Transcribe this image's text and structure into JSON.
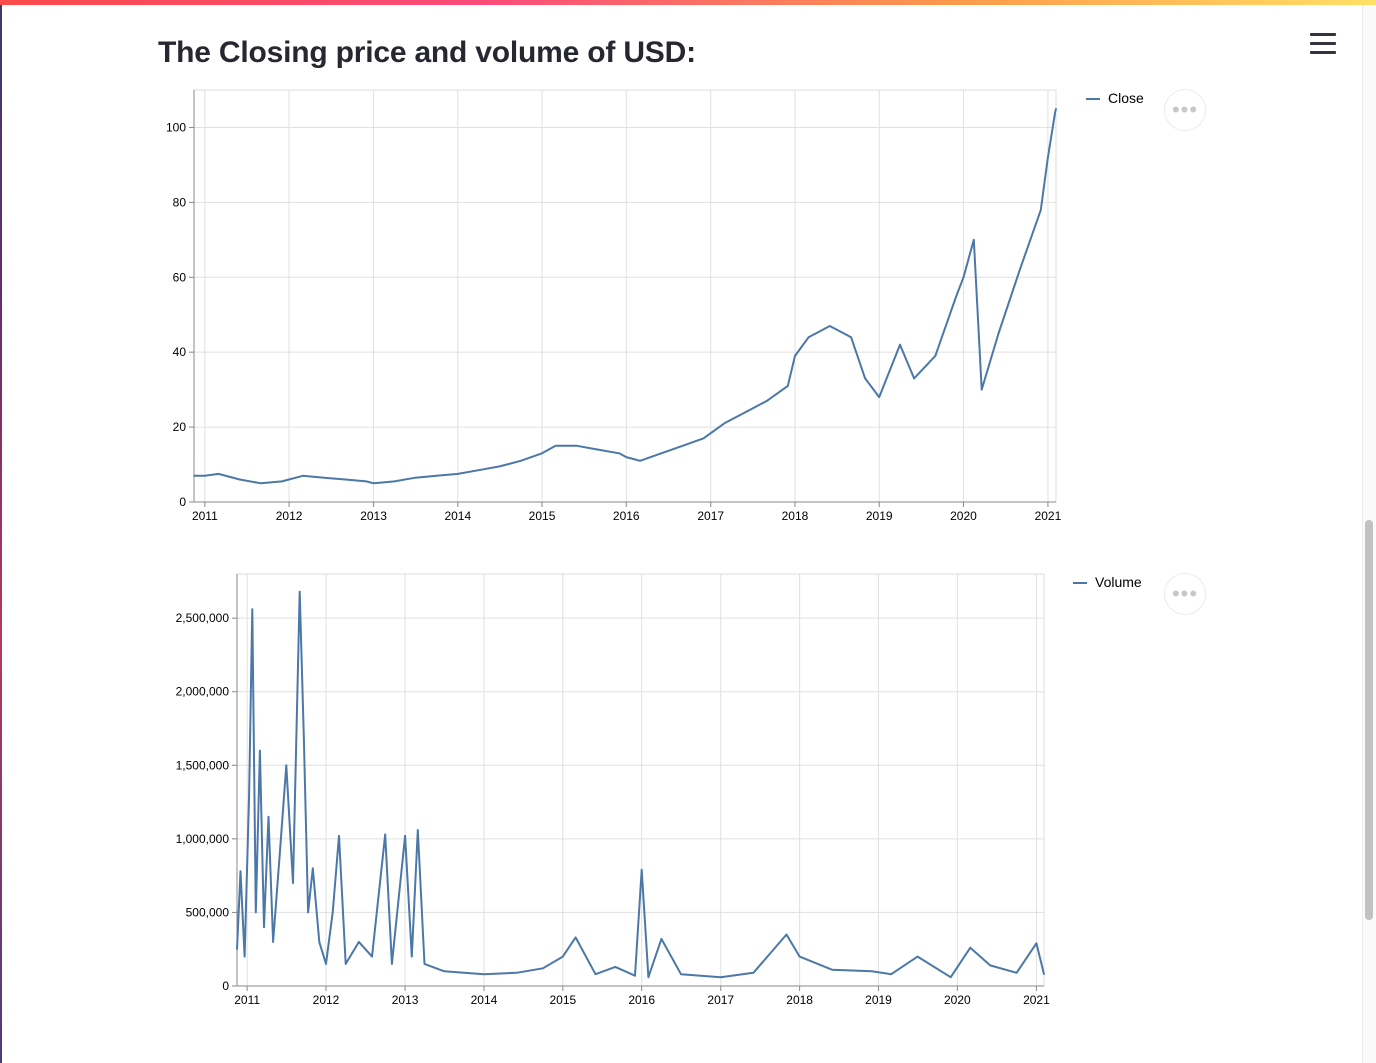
{
  "page": {
    "title": "The Closing price and volume of USD:",
    "accent": "#4c78a8"
  },
  "menu": {
    "icon": "hamburger-icon"
  },
  "chart_data": [
    {
      "type": "line",
      "series_name": "Close",
      "x_ticks": [
        "2011",
        "2012",
        "2013",
        "2014",
        "2015",
        "2016",
        "2017",
        "2018",
        "2019",
        "2020",
        "2021"
      ],
      "y_ticks": [
        "0",
        "20",
        "40",
        "60",
        "80",
        "100"
      ],
      "ylim": [
        0,
        110
      ],
      "xlim": [
        "2010-11-15",
        "2021-02-05"
      ],
      "grid": true,
      "legend": "top-right",
      "color": "#4c78a8",
      "points": [
        [
          "2010-11-15",
          7
        ],
        [
          "2011-01-01",
          7
        ],
        [
          "2011-03-01",
          7.5
        ],
        [
          "2011-06-01",
          6
        ],
        [
          "2011-09-01",
          5
        ],
        [
          "2011-12-01",
          5.5
        ],
        [
          "2012-03-01",
          7
        ],
        [
          "2012-06-01",
          6.5
        ],
        [
          "2012-09-01",
          6
        ],
        [
          "2012-12-01",
          5.5
        ],
        [
          "2013-01-01",
          5
        ],
        [
          "2013-04-01",
          5.5
        ],
        [
          "2013-07-01",
          6.5
        ],
        [
          "2013-10-01",
          7
        ],
        [
          "2014-01-01",
          7.5
        ],
        [
          "2014-04-01",
          8.5
        ],
        [
          "2014-07-01",
          9.5
        ],
        [
          "2014-10-01",
          11
        ],
        [
          "2015-01-01",
          13
        ],
        [
          "2015-03-01",
          15
        ],
        [
          "2015-06-01",
          15
        ],
        [
          "2015-09-01",
          14
        ],
        [
          "2015-12-01",
          13
        ],
        [
          "2016-01-01",
          12
        ],
        [
          "2016-03-01",
          11
        ],
        [
          "2016-06-01",
          13
        ],
        [
          "2016-09-01",
          15
        ],
        [
          "2016-12-01",
          17
        ],
        [
          "2017-03-01",
          21
        ],
        [
          "2017-06-01",
          24
        ],
        [
          "2017-09-01",
          27
        ],
        [
          "2017-12-01",
          31
        ],
        [
          "2018-01-01",
          39
        ],
        [
          "2018-03-01",
          44
        ],
        [
          "2018-06-01",
          47
        ],
        [
          "2018-09-01",
          44
        ],
        [
          "2018-11-01",
          33
        ],
        [
          "2019-01-01",
          28
        ],
        [
          "2019-04-01",
          42
        ],
        [
          "2019-06-01",
          33
        ],
        [
          "2019-09-01",
          39
        ],
        [
          "2019-12-01",
          55
        ],
        [
          "2020-01-01",
          60
        ],
        [
          "2020-02-15",
          70
        ],
        [
          "2020-03-20",
          30
        ],
        [
          "2020-06-01",
          45
        ],
        [
          "2020-09-01",
          62
        ],
        [
          "2020-12-01",
          78
        ],
        [
          "2021-01-01",
          92
        ],
        [
          "2021-02-01",
          104
        ],
        [
          "2021-02-05",
          105
        ]
      ]
    },
    {
      "type": "line",
      "series_name": "Volume",
      "x_ticks": [
        "2011",
        "2012",
        "2013",
        "2014",
        "2015",
        "2016",
        "2017",
        "2018",
        "2019",
        "2020",
        "2021"
      ],
      "y_ticks": [
        "0",
        "500,000",
        "1,000,000",
        "1,500,000",
        "2,000,000",
        "2,500,000"
      ],
      "ylim": [
        0,
        2800000
      ],
      "xlim": [
        "2010-11-15",
        "2021-02-05"
      ],
      "grid": true,
      "legend": "top-right",
      "color": "#4c78a8",
      "points": [
        [
          "2010-11-15",
          250000
        ],
        [
          "2010-12-01",
          780000
        ],
        [
          "2010-12-20",
          200000
        ],
        [
          "2011-01-10",
          1300000
        ],
        [
          "2011-01-25",
          2560000
        ],
        [
          "2011-02-10",
          500000
        ],
        [
          "2011-03-01",
          1600000
        ],
        [
          "2011-03-20",
          400000
        ],
        [
          "2011-04-10",
          1150000
        ],
        [
          "2011-05-01",
          300000
        ],
        [
          "2011-06-01",
          900000
        ],
        [
          "2011-07-01",
          1500000
        ],
        [
          "2011-08-01",
          700000
        ],
        [
          "2011-09-01",
          2680000
        ],
        [
          "2011-09-20",
          1700000
        ],
        [
          "2011-10-10",
          500000
        ],
        [
          "2011-11-01",
          800000
        ],
        [
          "2011-12-01",
          300000
        ],
        [
          "2012-01-01",
          150000
        ],
        [
          "2012-02-01",
          500000
        ],
        [
          "2012-03-01",
          1020000
        ],
        [
          "2012-04-01",
          150000
        ],
        [
          "2012-06-01",
          300000
        ],
        [
          "2012-08-01",
          200000
        ],
        [
          "2012-10-01",
          1030000
        ],
        [
          "2012-11-01",
          150000
        ],
        [
          "2013-01-01",
          1020000
        ],
        [
          "2013-02-01",
          200000
        ],
        [
          "2013-03-01",
          1060000
        ],
        [
          "2013-04-01",
          150000
        ],
        [
          "2013-07-01",
          100000
        ],
        [
          "2014-01-01",
          80000
        ],
        [
          "2014-06-01",
          90000
        ],
        [
          "2014-10-01",
          120000
        ],
        [
          "2015-01-01",
          200000
        ],
        [
          "2015-03-01",
          330000
        ],
        [
          "2015-06-01",
          80000
        ],
        [
          "2015-09-01",
          130000
        ],
        [
          "2015-12-01",
          70000
        ],
        [
          "2016-01-01",
          790000
        ],
        [
          "2016-02-01",
          60000
        ],
        [
          "2016-04-01",
          320000
        ],
        [
          "2016-07-01",
          80000
        ],
        [
          "2017-01-01",
          60000
        ],
        [
          "2017-06-01",
          90000
        ],
        [
          "2017-11-01",
          350000
        ],
        [
          "2018-01-01",
          200000
        ],
        [
          "2018-06-01",
          110000
        ],
        [
          "2018-12-01",
          100000
        ],
        [
          "2019-03-01",
          80000
        ],
        [
          "2019-07-01",
          200000
        ],
        [
          "2019-12-01",
          60000
        ],
        [
          "2020-03-01",
          260000
        ],
        [
          "2020-06-01",
          140000
        ],
        [
          "2020-10-01",
          90000
        ],
        [
          "2021-01-01",
          290000
        ],
        [
          "2021-02-05",
          80000
        ]
      ]
    }
  ]
}
